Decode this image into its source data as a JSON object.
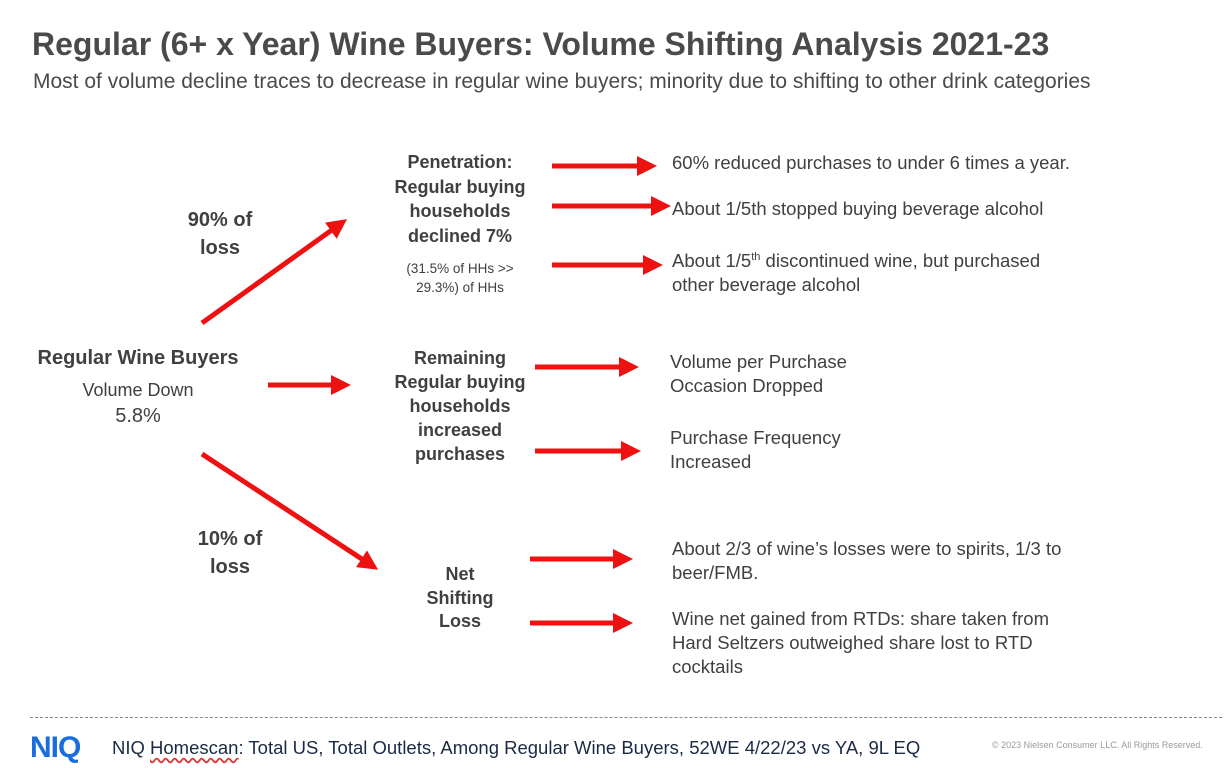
{
  "title": "Regular (6+ x Year) Wine Buyers: Volume Shifting Analysis 2021-23",
  "subtitle": "Most of volume decline traces to decrease in regular wine buyers; minority due to shifting to other drink categories",
  "root": {
    "title": "Regular Wine Buyers",
    "line1": "Volume Down",
    "line2": "5.8%"
  },
  "labels": {
    "upper_share": [
      "90% of",
      "loss"
    ],
    "lower_share": [
      "10% of",
      "loss"
    ]
  },
  "branches": {
    "penetration": {
      "lines": [
        "Penetration:",
        "Regular buying",
        "households",
        "declined 7%"
      ],
      "note": [
        "(31.5% of HHs  >>",
        "29.3%) of HHs"
      ]
    },
    "remaining": {
      "lines": [
        "Remaining",
        "Regular buying",
        "households",
        "increased",
        "purchases"
      ]
    },
    "net": {
      "lines": [
        "Net",
        "Shifting",
        "Loss"
      ]
    }
  },
  "outcomes": {
    "pen_1": "60% reduced purchases to under 6 times a year.",
    "pen_2": "About 1/5th stopped buying beverage alcohol",
    "pen_3_a": "About 1/5",
    "pen_3_sup": "th",
    "pen_3_b": " discontinued wine, but purchased",
    "pen_3_c": "other beverage alcohol",
    "rem_1": [
      "Volume per Purchase",
      "Occasion Dropped"
    ],
    "rem_2": [
      "Purchase Frequency",
      "Increased"
    ],
    "net_1": [
      "About 2/3 of wine’s losses were to spirits, 1/3 to",
      "beer/FMB."
    ],
    "net_2": [
      "Wine net gained from RTDs: share taken from",
      "Hard Seltzers outweighed share lost to RTD",
      "cocktails"
    ]
  },
  "footer": {
    "logo": "NIQ",
    "source_prefix": "NIQ ",
    "source_homescan": "Homescan",
    "source_rest": ": Total US, Total Outlets, Among Regular Wine Buyers, 52WE 4/22/23 vs YA, 9L EQ",
    "copyright": "© 2023 Nielsen Consumer LLC. All Rights Reserved."
  },
  "colors": {
    "arrow": "#ee1111",
    "logo": "#1a6edb"
  }
}
